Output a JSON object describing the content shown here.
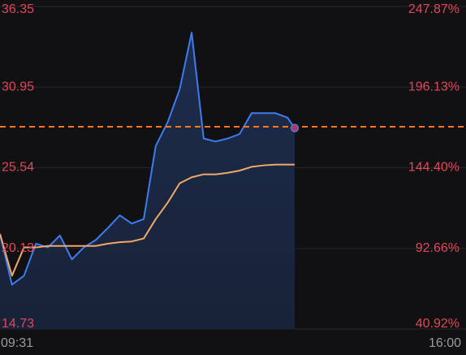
{
  "chart_data": {
    "type": "line",
    "x": [
      0,
      10,
      20,
      30,
      40,
      50,
      60,
      70,
      80,
      90,
      100,
      110,
      120,
      130,
      140,
      150,
      160,
      170,
      180,
      190,
      200,
      210,
      220,
      230,
      240,
      246
    ],
    "series": [
      {
        "color": "#3d7cf0",
        "values": [
          21.1,
          17.7,
          18.3,
          20.45,
          20.2,
          21.0,
          19.4,
          20.2,
          20.7,
          21.5,
          22.35,
          21.8,
          22.1,
          27.0,
          28.6,
          30.8,
          34.6,
          27.5,
          27.3,
          27.5,
          27.8,
          29.2,
          29.2,
          29.2,
          28.9,
          28.2
        ]
      },
      {
        "color": "#f0a868",
        "values": [
          21.1,
          18.3,
          20.2,
          20.2,
          20.3,
          20.3,
          20.3,
          20.3,
          20.3,
          20.45,
          20.55,
          20.6,
          20.8,
          22.1,
          23.2,
          24.5,
          24.9,
          25.1,
          25.1,
          25.2,
          25.35,
          25.6,
          25.7,
          25.75,
          25.75,
          25.75
        ]
      }
    ],
    "reference_line": 28.29,
    "ylim": [
      14.73,
      36.35
    ],
    "yticks": [
      36.35,
      30.95,
      25.54,
      20.13,
      14.73
    ],
    "y2lim": [
      40.92,
      247.87
    ],
    "y2ticks": [
      {
        "value": 247.87,
        "label": "247.87%"
      },
      {
        "value": 196.13,
        "label": "196.13%"
      },
      {
        "value": 144.4,
        "label": "144.40%"
      },
      {
        "value": 92.66,
        "label": "92.66%"
      },
      {
        "value": 40.92,
        "label": "40.92%"
      }
    ],
    "xlim": [
      0,
      389
    ],
    "xticks": [
      {
        "value": 0,
        "label": "09:31"
      },
      {
        "value": 389,
        "label": "16:00"
      }
    ],
    "grid": true
  }
}
